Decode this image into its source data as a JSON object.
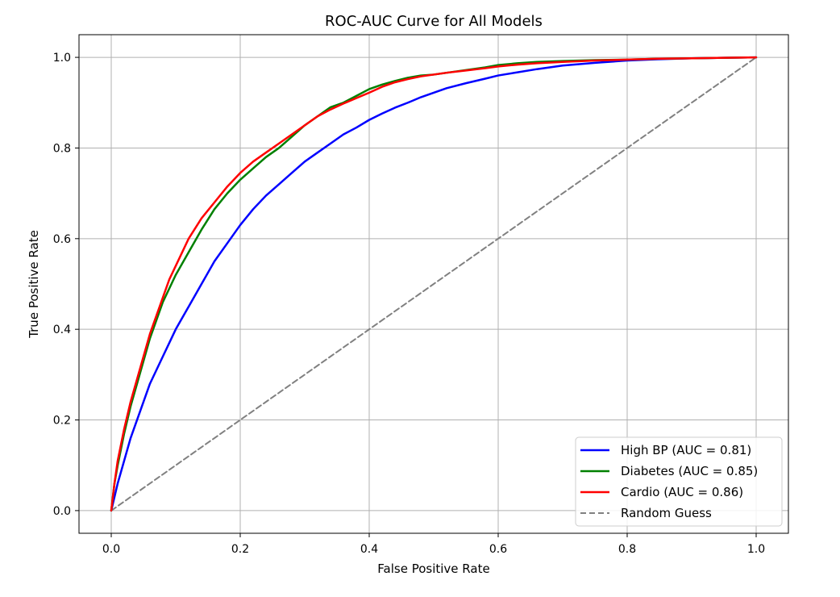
{
  "chart_data": {
    "type": "line",
    "title": "ROC-AUC Curve for All Models",
    "xlabel": "False Positive Rate",
    "ylabel": "True Positive Rate",
    "xlim": [
      -0.05,
      1.05
    ],
    "ylim": [
      -0.05,
      1.05
    ],
    "xticks": [
      0.0,
      0.2,
      0.4,
      0.6,
      0.8,
      1.0
    ],
    "xtick_labels": [
      "0.0",
      "0.2",
      "0.4",
      "0.6",
      "0.8",
      "1.0"
    ],
    "yticks": [
      0.0,
      0.2,
      0.4,
      0.6,
      0.8,
      1.0
    ],
    "ytick_labels": [
      "0.0",
      "0.2",
      "0.4",
      "0.6",
      "0.8",
      "1.0"
    ],
    "grid": true,
    "legend_position": "bottom-right",
    "series": [
      {
        "name": "High BP (AUC = 0.81)",
        "color": "#0000ff",
        "style": "solid",
        "x": [
          0.0,
          0.005,
          0.01,
          0.02,
          0.03,
          0.04,
          0.05,
          0.06,
          0.07,
          0.08,
          0.09,
          0.1,
          0.12,
          0.14,
          0.16,
          0.18,
          0.2,
          0.22,
          0.24,
          0.26,
          0.28,
          0.3,
          0.32,
          0.34,
          0.36,
          0.38,
          0.4,
          0.42,
          0.44,
          0.46,
          0.48,
          0.5,
          0.52,
          0.55,
          0.58,
          0.6,
          0.63,
          0.66,
          0.7,
          0.75,
          0.8,
          0.85,
          0.9,
          0.95,
          1.0
        ],
        "y": [
          0.0,
          0.03,
          0.06,
          0.11,
          0.16,
          0.2,
          0.24,
          0.28,
          0.31,
          0.34,
          0.37,
          0.4,
          0.45,
          0.5,
          0.55,
          0.59,
          0.63,
          0.665,
          0.695,
          0.72,
          0.745,
          0.77,
          0.79,
          0.81,
          0.83,
          0.845,
          0.862,
          0.876,
          0.889,
          0.9,
          0.912,
          0.922,
          0.932,
          0.943,
          0.953,
          0.96,
          0.967,
          0.974,
          0.982,
          0.988,
          0.993,
          0.996,
          0.998,
          0.999,
          1.0
        ]
      },
      {
        "name": "Diabetes (AUC = 0.85)",
        "color": "#008000",
        "style": "solid",
        "x": [
          0.0,
          0.005,
          0.01,
          0.02,
          0.03,
          0.04,
          0.05,
          0.06,
          0.07,
          0.08,
          0.09,
          0.1,
          0.12,
          0.14,
          0.16,
          0.18,
          0.2,
          0.22,
          0.24,
          0.26,
          0.28,
          0.3,
          0.32,
          0.34,
          0.36,
          0.38,
          0.4,
          0.42,
          0.44,
          0.46,
          0.48,
          0.5,
          0.52,
          0.55,
          0.58,
          0.6,
          0.63,
          0.66,
          0.7,
          0.75,
          0.8,
          0.85,
          0.9,
          0.95,
          1.0
        ],
        "y": [
          0.0,
          0.06,
          0.1,
          0.17,
          0.23,
          0.28,
          0.33,
          0.38,
          0.42,
          0.46,
          0.49,
          0.52,
          0.57,
          0.62,
          0.665,
          0.7,
          0.73,
          0.755,
          0.78,
          0.8,
          0.825,
          0.85,
          0.87,
          0.89,
          0.9,
          0.915,
          0.93,
          0.94,
          0.948,
          0.955,
          0.96,
          0.962,
          0.966,
          0.972,
          0.978,
          0.983,
          0.987,
          0.99,
          0.992,
          0.994,
          0.995,
          0.997,
          0.998,
          0.999,
          1.0
        ]
      },
      {
        "name": "Cardio (AUC = 0.86)",
        "color": "#ff0000",
        "style": "solid",
        "x": [
          0.0,
          0.005,
          0.01,
          0.02,
          0.03,
          0.04,
          0.05,
          0.06,
          0.07,
          0.08,
          0.09,
          0.1,
          0.12,
          0.14,
          0.16,
          0.18,
          0.2,
          0.22,
          0.24,
          0.26,
          0.28,
          0.3,
          0.32,
          0.34,
          0.36,
          0.38,
          0.4,
          0.42,
          0.44,
          0.46,
          0.48,
          0.5,
          0.52,
          0.55,
          0.58,
          0.6,
          0.63,
          0.66,
          0.7,
          0.75,
          0.8,
          0.85,
          0.9,
          0.95,
          1.0
        ],
        "y": [
          0.0,
          0.06,
          0.11,
          0.18,
          0.24,
          0.29,
          0.34,
          0.39,
          0.43,
          0.47,
          0.51,
          0.54,
          0.6,
          0.645,
          0.68,
          0.715,
          0.745,
          0.77,
          0.79,
          0.81,
          0.83,
          0.85,
          0.87,
          0.885,
          0.898,
          0.91,
          0.922,
          0.935,
          0.945,
          0.952,
          0.958,
          0.962,
          0.966,
          0.971,
          0.976,
          0.98,
          0.984,
          0.987,
          0.99,
          0.993,
          0.995,
          0.997,
          0.998,
          0.999,
          1.0
        ]
      },
      {
        "name": "Random Guess",
        "color": "#808080",
        "style": "dashed",
        "x": [
          0.0,
          1.0
        ],
        "y": [
          0.0,
          1.0
        ]
      }
    ]
  }
}
